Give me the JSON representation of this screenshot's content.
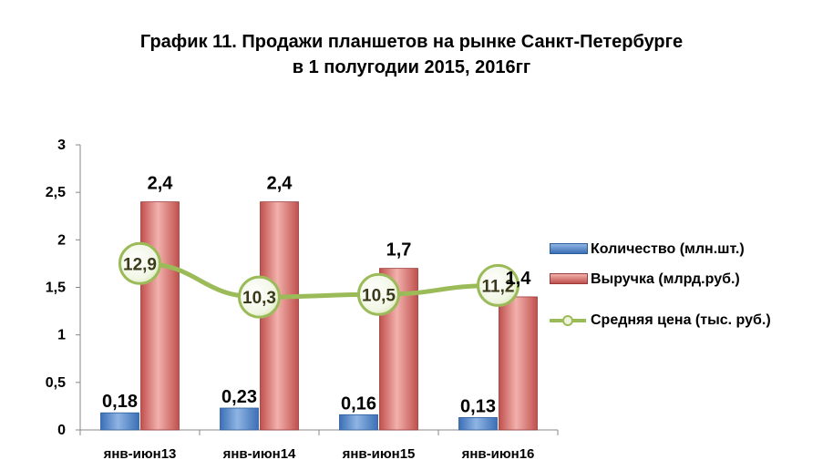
{
  "title_line1": "График 11. Продажи планшетов на рынке Санкт-Петербурге",
  "title_line2": "в 1 полугодии 2015, 2016гг",
  "chart_data": {
    "type": "bar",
    "categories": [
      "янв-июн13",
      "янв-июн14",
      "янв-июн15",
      "янв-июн16"
    ],
    "ylim": [
      0,
      3
    ],
    "yticks": [
      "0",
      "0,5",
      "1",
      "1,5",
      "2",
      "2,5",
      "3"
    ],
    "grid": false,
    "legend_position": "right",
    "series": [
      {
        "name": "Количество (млн.шт.)",
        "values": [
          0.18,
          0.23,
          0.16,
          0.13
        ],
        "labels": [
          "0,18",
          "0,23",
          "0,16",
          "0,13"
        ],
        "color": "#4f81bd",
        "kind": "bar"
      },
      {
        "name": "Выручка (млрд.руб.)",
        "values": [
          2.4,
          2.4,
          1.7,
          1.4
        ],
        "labels": [
          "2,4",
          "2,4",
          "1,7",
          "1,4"
        ],
        "color": "#c0504d",
        "kind": "bar"
      },
      {
        "name": "Средняя цена (тыс. руб.)",
        "values": [
          12.9,
          10.3,
          10.5,
          11.2
        ],
        "labels": [
          "12,9",
          "10,3",
          "10,5",
          "11,2"
        ],
        "color": "#9bbb59",
        "kind": "line"
      }
    ]
  }
}
